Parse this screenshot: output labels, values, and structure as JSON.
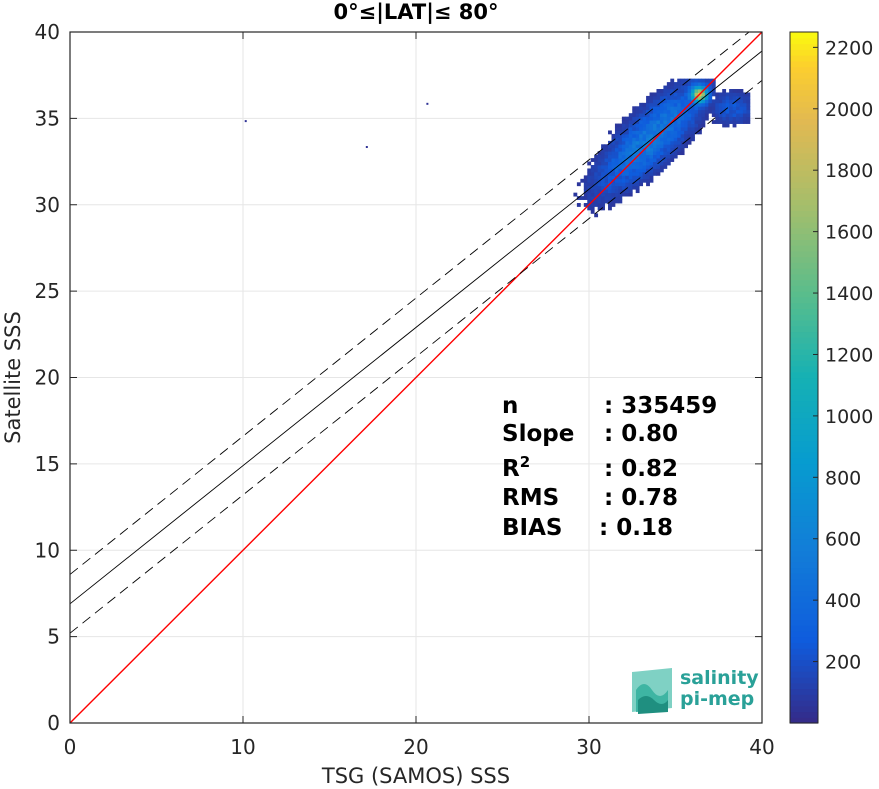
{
  "chart_data": {
    "type": "heatmap",
    "title": "0°≤|LAT|≤ 80°",
    "xlabel": "TSG (SAMOS) SSS",
    "ylabel": "Satellite SSS",
    "xlim": [
      0,
      40
    ],
    "ylim": [
      0,
      40
    ],
    "xticks": [
      0,
      10,
      20,
      30,
      40
    ],
    "yticks": [
      0,
      5,
      10,
      15,
      20,
      25,
      30,
      35,
      40
    ],
    "grid": true,
    "colorbar": {
      "range": [
        0,
        2250
      ],
      "ticks": [
        200,
        400,
        600,
        800,
        1000,
        1200,
        1400,
        1600,
        1800,
        2000,
        2200
      ],
      "colormap": "parula"
    },
    "lines": [
      {
        "role": "one-to-one",
        "color": "#ff0000",
        "style": "solid",
        "slope": 1.0,
        "intercept": 0.0
      },
      {
        "role": "regression",
        "color": "#000000",
        "style": "solid",
        "slope": 0.8,
        "intercept": 6.9
      },
      {
        "role": "regression-upper",
        "color": "#000000",
        "style": "dashed",
        "slope": 0.8,
        "intercept": 8.6
      },
      {
        "role": "regression-lower",
        "color": "#000000",
        "style": "dashed",
        "slope": 0.8,
        "intercept": 5.2
      }
    ],
    "density": {
      "center_x": 33.5,
      "center_y": 33.8,
      "peak_x": 36.3,
      "peak_y": 36.3,
      "peak_count": 2200,
      "x_range": [
        28.3,
        39.3
      ],
      "y_range": [
        28.7,
        37.2
      ]
    },
    "stats": [
      {
        "label": "n",
        "value": ": 335459"
      },
      {
        "label": "Slope",
        "value": ": 0.80"
      },
      {
        "label": "R",
        "sup": "2",
        "value": ": 0.82"
      },
      {
        "label": "RMS",
        "value": ": 0.78"
      },
      {
        "label": "BIAS",
        "value": ": 0.18"
      }
    ]
  },
  "logo": {
    "line1": "salinity",
    "line2": "pi-mep"
  }
}
